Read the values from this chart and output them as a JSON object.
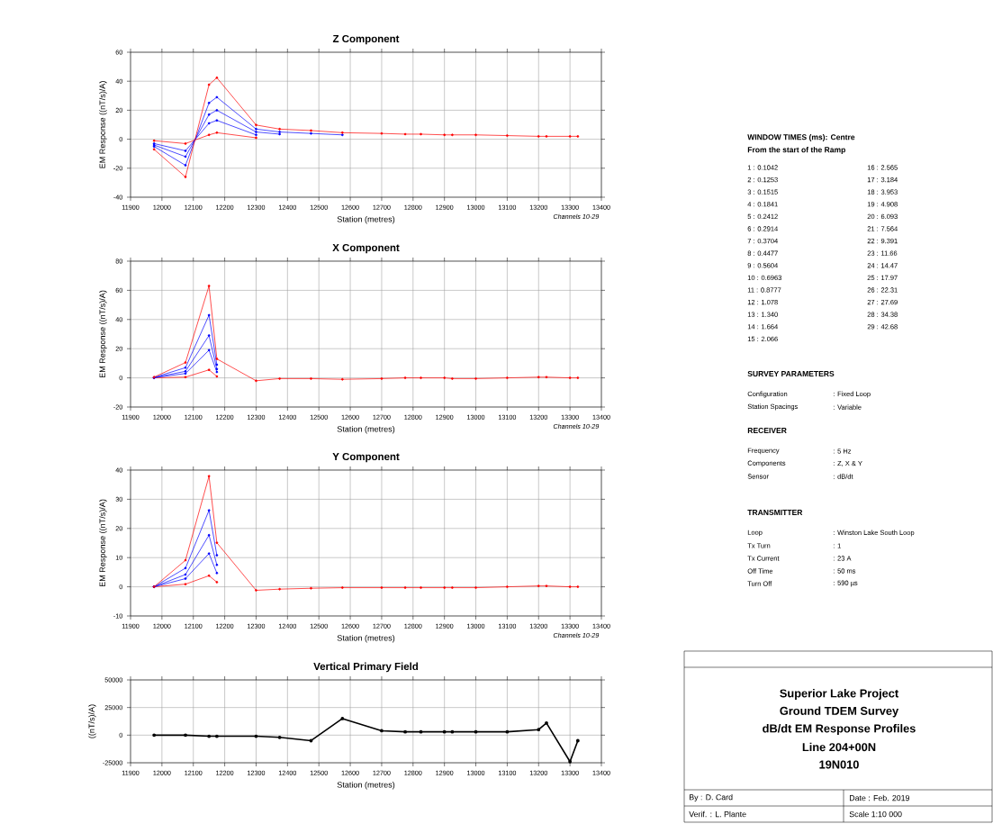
{
  "chart_data": [
    {
      "type": "line",
      "title": "Z Component",
      "xlabel": "Station (metres)",
      "ylabel": "EM Response ((nT/s)/A)",
      "annotations": [
        "Channels 10-29"
      ],
      "x": [
        11975,
        12075,
        12150,
        12175,
        12300,
        12375,
        12475,
        12575,
        12700,
        12775,
        12825,
        12900,
        12925,
        13000,
        13100,
        13200,
        13225,
        13300,
        13325
      ],
      "xlim": [
        11900,
        13400
      ],
      "xticks": [
        11900,
        12000,
        12100,
        12200,
        12300,
        12400,
        12500,
        12600,
        12700,
        12800,
        12900,
        13000,
        13100,
        13200,
        13300,
        13400
      ],
      "ylim": [
        -40,
        60
      ],
      "yticks": [
        -40,
        -20,
        0,
        20,
        40,
        60
      ],
      "grid": true,
      "marker": "circle",
      "series": [
        {
          "color": "#ff0000",
          "values": [
            -7,
            -26,
            37.6,
            42.4,
            9.8,
            7,
            6,
            4.5,
            4,
            3.5,
            3.5,
            3,
            3,
            3,
            2.5,
            2,
            2,
            2,
            2
          ]
        },
        {
          "color": "#0000ff",
          "values": [
            -5,
            -18,
            25,
            29,
            7,
            5,
            4,
            3,
            null,
            null,
            null,
            null,
            null,
            null,
            null,
            null,
            null,
            null,
            null
          ]
        },
        {
          "color": "#0000ff",
          "values": [
            -4,
            -12,
            17,
            20,
            5,
            3.5,
            null,
            null,
            null,
            null,
            null,
            null,
            null,
            null,
            null,
            null,
            null,
            null,
            null
          ]
        },
        {
          "color": "#0000ff",
          "values": [
            -3,
            -8,
            11,
            13,
            3,
            null,
            null,
            null,
            null,
            null,
            null,
            null,
            null,
            null,
            null,
            null,
            null,
            null,
            null
          ]
        },
        {
          "color": "#ff0000",
          "values": [
            -1,
            -3,
            3,
            4.5,
            1,
            null,
            null,
            null,
            null,
            null,
            null,
            null,
            null,
            null,
            null,
            null,
            null,
            null,
            null
          ]
        }
      ]
    },
    {
      "type": "line",
      "title": "X Component",
      "xlabel": "Station (metres)",
      "ylabel": "EM Response ((nT/s)/A)",
      "annotations": [
        "Channels 10-29"
      ],
      "x": [
        11975,
        12075,
        12150,
        12175,
        12300,
        12375,
        12475,
        12575,
        12700,
        12775,
        12825,
        12900,
        12925,
        13000,
        13100,
        13200,
        13225,
        13300,
        13325
      ],
      "xlim": [
        11900,
        13400
      ],
      "xticks": [
        11900,
        12000,
        12100,
        12200,
        12300,
        12400,
        12500,
        12600,
        12700,
        12800,
        12900,
        13000,
        13100,
        13200,
        13300,
        13400
      ],
      "ylim": [
        -20,
        80
      ],
      "yticks": [
        -20,
        0,
        20,
        40,
        60,
        80
      ],
      "grid": true,
      "marker": "circle",
      "series": [
        {
          "color": "#ff0000",
          "values": [
            0.5,
            10.5,
            63,
            13,
            -2,
            -0.5,
            -0.5,
            -1,
            -0.5,
            0,
            0,
            0,
            -0.5,
            -0.5,
            0,
            0.5,
            0.5,
            0,
            0
          ]
        },
        {
          "color": "#0000ff",
          "values": [
            0.3,
            7,
            43,
            9,
            null,
            null,
            null,
            null,
            null,
            null,
            null,
            null,
            null,
            null,
            null,
            null,
            null,
            null,
            null
          ]
        },
        {
          "color": "#0000ff",
          "values": [
            0.2,
            4.5,
            29,
            6,
            null,
            null,
            null,
            null,
            null,
            null,
            null,
            null,
            null,
            null,
            null,
            null,
            null,
            null,
            null
          ]
        },
        {
          "color": "#0000ff",
          "values": [
            0.1,
            3,
            19,
            4,
            null,
            null,
            null,
            null,
            null,
            null,
            null,
            null,
            null,
            null,
            null,
            null,
            null,
            null,
            null
          ]
        },
        {
          "color": "#ff0000",
          "values": [
            0,
            0.5,
            5.5,
            1,
            null,
            null,
            null,
            null,
            null,
            null,
            null,
            null,
            null,
            null,
            null,
            null,
            null,
            null,
            null
          ]
        }
      ]
    },
    {
      "type": "line",
      "title": "Y Component",
      "xlabel": "Station (metres)",
      "ylabel": "EM Response ((nT/s)/A)",
      "annotations": [
        "Channels 10-29"
      ],
      "x": [
        11975,
        12075,
        12150,
        12175,
        12300,
        12375,
        12475,
        12575,
        12700,
        12775,
        12825,
        12900,
        12925,
        13000,
        13100,
        13200,
        13225,
        13300,
        13325
      ],
      "xlim": [
        11900,
        13400
      ],
      "xticks": [
        11900,
        12000,
        12100,
        12200,
        12300,
        12400,
        12500,
        12600,
        12700,
        12800,
        12900,
        13000,
        13100,
        13200,
        13300,
        13400
      ],
      "ylim": [
        -10,
        40
      ],
      "yticks": [
        -10,
        0,
        10,
        20,
        30,
        40
      ],
      "grid": true,
      "marker": "circle",
      "series": [
        {
          "color": "#ff0000",
          "values": [
            0,
            9.1,
            37.9,
            15.1,
            -1.2,
            -0.8,
            -0.5,
            -0.3,
            -0.3,
            -0.3,
            -0.3,
            -0.3,
            -0.3,
            -0.3,
            0,
            0.3,
            0.3,
            0,
            0
          ]
        },
        {
          "color": "#0000ff",
          "values": [
            0,
            6.4,
            26.2,
            10.8,
            null,
            null,
            null,
            null,
            null,
            null,
            null,
            null,
            null,
            null,
            null,
            null,
            null,
            null,
            null
          ]
        },
        {
          "color": "#0000ff",
          "values": [
            0,
            4.2,
            17.7,
            7.5,
            null,
            null,
            null,
            null,
            null,
            null,
            null,
            null,
            null,
            null,
            null,
            null,
            null,
            null,
            null
          ]
        },
        {
          "color": "#0000ff",
          "values": [
            0,
            2.8,
            11.4,
            4.7,
            null,
            null,
            null,
            null,
            null,
            null,
            null,
            null,
            null,
            null,
            null,
            null,
            null,
            null,
            null
          ]
        },
        {
          "color": "#ff0000",
          "values": [
            0,
            0.9,
            3.8,
            1.6,
            null,
            null,
            null,
            null,
            null,
            null,
            null,
            null,
            null,
            null,
            null,
            null,
            null,
            null,
            null
          ]
        }
      ]
    },
    {
      "type": "line",
      "title": "Vertical Primary Field",
      "xlabel": "Station (metres)",
      "ylabel": "((nT/s)/A)",
      "x": [
        11975,
        12075,
        12150,
        12175,
        12300,
        12375,
        12475,
        12575,
        12700,
        12775,
        12825,
        12900,
        12925,
        13000,
        13100,
        13200,
        13225,
        13300,
        13325
      ],
      "xlim": [
        11900,
        13400
      ],
      "xticks": [
        11900,
        12000,
        12100,
        12200,
        12300,
        12400,
        12500,
        12600,
        12700,
        12800,
        12900,
        13000,
        13100,
        13200,
        13300,
        13400
      ],
      "ylim": [
        -25000,
        50000
      ],
      "yticks": [
        -25000,
        0,
        25000,
        50000
      ],
      "grid": true,
      "marker": "circle",
      "series": [
        {
          "color": "#000000",
          "values": [
            0,
            0,
            -1000,
            -1000,
            -1000,
            -2000,
            -5000,
            15000,
            4000,
            3000,
            3000,
            3000,
            3000,
            3000,
            3000,
            5000,
            11000,
            -24000,
            -5000
          ]
        }
      ]
    },
    {
      "type": "other",
      "annotations": [
        "WINDOW TIMES (ms): Centre",
        "From the start of the Ramp",
        "1 : 0.1042",
        "2 : 0.1253",
        "3 : 0.1515",
        "4 : 0.1841",
        "5 : 0.2412",
        "6 : 0.2914",
        "7 : 0.3704",
        "8 : 0.4477",
        "9 : 0.5604",
        "10 : 0.6963",
        "11 : 0.8777",
        "12 : 1.078",
        "13 : 1.340",
        "14 : 1.664",
        "15 : 2.066",
        "16 : 2.565",
        "17 : 3.184",
        "18 : 3.953",
        "19 : 4.908",
        "20 : 6.093",
        "21 : 7.564",
        "22 : 9.391",
        "23 : 11.66",
        "24 : 14.47",
        "25 : 17.97",
        "26 : 22.31",
        "27 : 27.69",
        "28 : 34.38",
        "29 : 42.68",
        "SURVEY PARAMETERS",
        "Configuration",
        ": Fixed Loop",
        "Station Spacings",
        ": Variable",
        "RECEIVER",
        "Frequency",
        ": 5 Hz",
        "Components",
        ": Z, X & Y",
        "Sensor",
        ": dB/dt",
        "TRANSMITTER",
        "Loop",
        ": Winston Lake South Loop",
        "Tx Turn",
        ": 1",
        "Tx Current",
        ": 23 A",
        "Off Time",
        ": 50 ms",
        "Turn Off",
        ": 590 µs"
      ]
    },
    {
      "type": "other",
      "annotations": [
        "Superior Lake Project",
        "Ground TDEM Survey",
        "dB/dt EM Response Profiles",
        "Line 204+00N",
        "19N010",
        "By : D. Card",
        "Date : Feb. 2019",
        "Verif. : L. Plante",
        "Scale 1:10 000"
      ]
    }
  ]
}
